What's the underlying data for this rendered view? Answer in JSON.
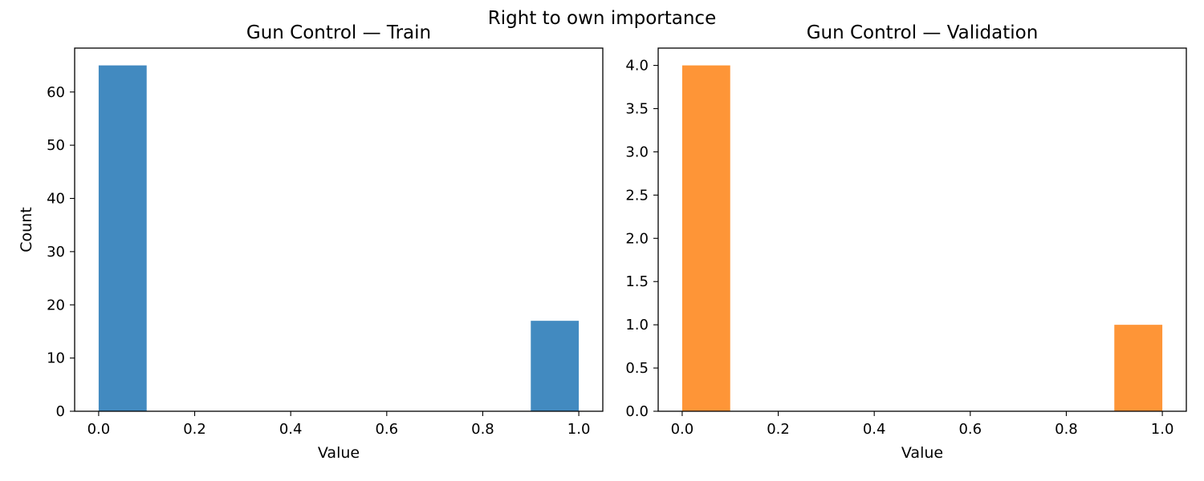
{
  "suptitle": "Right to own importance",
  "chart_data": [
    {
      "type": "bar",
      "title": "Gun Control — Train",
      "xlabel": "Value",
      "ylabel": "Count",
      "color": "#428ac0",
      "xlim": [
        -0.05,
        1.05
      ],
      "ylim": [
        0,
        68.25
      ],
      "xticks": [
        0.0,
        0.2,
        0.4,
        0.6,
        0.8,
        1.0
      ],
      "xtick_labels": [
        "0.0",
        "0.2",
        "0.4",
        "0.6",
        "0.8",
        "1.0"
      ],
      "yticks": [
        0,
        10,
        20,
        30,
        40,
        50,
        60
      ],
      "ytick_labels": [
        "0",
        "10",
        "20",
        "30",
        "40",
        "50",
        "60"
      ],
      "bins": [
        {
          "x0": 0.0,
          "x1": 0.1,
          "value": 65
        },
        {
          "x0": 0.9,
          "x1": 1.0,
          "value": 17
        }
      ]
    },
    {
      "type": "bar",
      "title": "Gun Control — Validation",
      "xlabel": "Value",
      "ylabel": "",
      "color": "#fe9537",
      "xlim": [
        -0.05,
        1.05
      ],
      "ylim": [
        0,
        4.2
      ],
      "xticks": [
        0.0,
        0.2,
        0.4,
        0.6,
        0.8,
        1.0
      ],
      "xtick_labels": [
        "0.0",
        "0.2",
        "0.4",
        "0.6",
        "0.8",
        "1.0"
      ],
      "yticks": [
        0.0,
        0.5,
        1.0,
        1.5,
        2.0,
        2.5,
        3.0,
        3.5,
        4.0
      ],
      "ytick_labels": [
        "0.0",
        "0.5",
        "1.0",
        "1.5",
        "2.0",
        "2.5",
        "3.0",
        "3.5",
        "4.0"
      ],
      "bins": [
        {
          "x0": 0.0,
          "x1": 0.1,
          "value": 4
        },
        {
          "x0": 0.9,
          "x1": 1.0,
          "value": 1
        }
      ]
    }
  ]
}
